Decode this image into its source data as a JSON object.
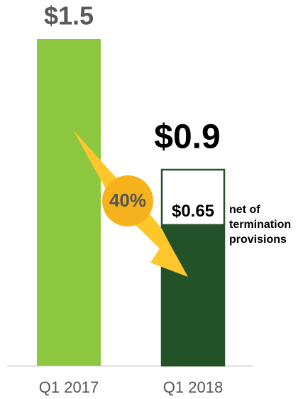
{
  "chart_data": {
    "type": "bar",
    "categories": [
      "Q1 2017",
      "Q1 2018"
    ],
    "values": [
      1.5,
      0.9
    ],
    "value_labels": [
      "$1.5",
      "$0.9"
    ],
    "colors": [
      "#8dc63f",
      "#235229"
    ],
    "net_value": 0.65,
    "net_value_label": "$0.65",
    "net_annotation": [
      "net of",
      "termination",
      "provisions"
    ],
    "change": {
      "value": 40,
      "label": "40%"
    },
    "change_color": "#f5b21c",
    "arrow_color": "#ffc72c"
  }
}
